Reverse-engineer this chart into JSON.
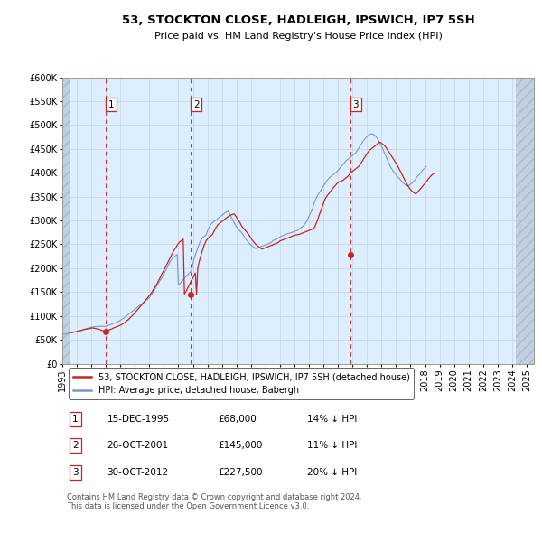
{
  "title": "53, STOCKTON CLOSE, HADLEIGH, IPSWICH, IP7 5SH",
  "subtitle": "Price paid vs. HM Land Registry's House Price Index (HPI)",
  "ylim": [
    0,
    600000
  ],
  "xlim_start": 1993.0,
  "xlim_end": 2025.5,
  "yticks": [
    0,
    50000,
    100000,
    150000,
    200000,
    250000,
    300000,
    350000,
    400000,
    450000,
    500000,
    550000,
    600000
  ],
  "ytick_labels": [
    "£0",
    "£50K",
    "£100K",
    "£150K",
    "£200K",
    "£250K",
    "£300K",
    "£350K",
    "£400K",
    "£450K",
    "£500K",
    "£550K",
    "£600K"
  ],
  "xticks": [
    1993,
    1994,
    1995,
    1996,
    1997,
    1998,
    1999,
    2000,
    2001,
    2002,
    2003,
    2004,
    2005,
    2006,
    2007,
    2008,
    2009,
    2010,
    2011,
    2012,
    2013,
    2014,
    2015,
    2016,
    2017,
    2018,
    2019,
    2020,
    2021,
    2022,
    2023,
    2024,
    2025
  ],
  "hpi_color": "#7799cc",
  "price_color": "#cc2222",
  "grid_color": "#c8d8e8",
  "bg_color": "#ddeeff",
  "hatch_bg_color": "#c0d0e0",
  "purchase_dates": [
    1995.96,
    2001.82,
    2012.83
  ],
  "purchase_prices": [
    68000,
    145000,
    227500
  ],
  "purchase_labels": [
    "1",
    "2",
    "3"
  ],
  "legend_line1": "53, STOCKTON CLOSE, HADLEIGH, IPSWICH, IP7 5SH (detached house)",
  "legend_line2": "HPI: Average price, detached house, Babergh",
  "table_data": [
    [
      "1",
      "15-DEC-1995",
      "£68,000",
      "14% ↓ HPI"
    ],
    [
      "2",
      "26-OCT-2001",
      "£145,000",
      "11% ↓ HPI"
    ],
    [
      "3",
      "30-OCT-2012",
      "£227,500",
      "20% ↓ HPI"
    ]
  ],
  "footer": "Contains HM Land Registry data © Crown copyright and database right 2024.\nThis data is licensed under the Open Government Licence v3.0.",
  "hpi_x": [
    1993.0,
    1993.083,
    1993.167,
    1993.25,
    1993.333,
    1993.417,
    1993.5,
    1993.583,
    1993.667,
    1993.75,
    1993.833,
    1993.917,
    1994.0,
    1994.083,
    1994.167,
    1994.25,
    1994.333,
    1994.417,
    1994.5,
    1994.583,
    1994.667,
    1994.75,
    1994.833,
    1994.917,
    1995.0,
    1995.083,
    1995.167,
    1995.25,
    1995.333,
    1995.417,
    1995.5,
    1995.583,
    1995.667,
    1995.75,
    1995.833,
    1995.917,
    1996.0,
    1996.083,
    1996.167,
    1996.25,
    1996.333,
    1996.417,
    1996.5,
    1996.583,
    1996.667,
    1996.75,
    1996.833,
    1996.917,
    1997.0,
    1997.083,
    1997.167,
    1997.25,
    1997.333,
    1997.417,
    1997.5,
    1997.583,
    1997.667,
    1997.75,
    1997.833,
    1997.917,
    1998.0,
    1998.083,
    1998.167,
    1998.25,
    1998.333,
    1998.417,
    1998.5,
    1998.583,
    1998.667,
    1998.75,
    1998.833,
    1998.917,
    1999.0,
    1999.083,
    1999.167,
    1999.25,
    1999.333,
    1999.417,
    1999.5,
    1999.583,
    1999.667,
    1999.75,
    1999.833,
    1999.917,
    2000.0,
    2000.083,
    2000.167,
    2000.25,
    2000.333,
    2000.417,
    2000.5,
    2000.583,
    2000.667,
    2000.75,
    2000.833,
    2000.917,
    2001.0,
    2001.083,
    2001.167,
    2001.25,
    2001.333,
    2001.417,
    2001.5,
    2001.583,
    2001.667,
    2001.75,
    2001.833,
    2001.917,
    2002.0,
    2002.083,
    2002.167,
    2002.25,
    2002.333,
    2002.417,
    2002.5,
    2002.583,
    2002.667,
    2002.75,
    2002.833,
    2002.917,
    2003.0,
    2003.083,
    2003.167,
    2003.25,
    2003.333,
    2003.417,
    2003.5,
    2003.583,
    2003.667,
    2003.75,
    2003.833,
    2003.917,
    2004.0,
    2004.083,
    2004.167,
    2004.25,
    2004.333,
    2004.417,
    2004.5,
    2004.583,
    2004.667,
    2004.75,
    2004.833,
    2004.917,
    2005.0,
    2005.083,
    2005.167,
    2005.25,
    2005.333,
    2005.417,
    2005.5,
    2005.583,
    2005.667,
    2005.75,
    2005.833,
    2005.917,
    2006.0,
    2006.083,
    2006.167,
    2006.25,
    2006.333,
    2006.417,
    2006.5,
    2006.583,
    2006.667,
    2006.75,
    2006.833,
    2006.917,
    2007.0,
    2007.083,
    2007.167,
    2007.25,
    2007.333,
    2007.417,
    2007.5,
    2007.583,
    2007.667,
    2007.75,
    2007.833,
    2007.917,
    2008.0,
    2008.083,
    2008.167,
    2008.25,
    2008.333,
    2008.417,
    2008.5,
    2008.583,
    2008.667,
    2008.75,
    2008.833,
    2008.917,
    2009.0,
    2009.083,
    2009.167,
    2009.25,
    2009.333,
    2009.417,
    2009.5,
    2009.583,
    2009.667,
    2009.75,
    2009.833,
    2009.917,
    2010.0,
    2010.083,
    2010.167,
    2010.25,
    2010.333,
    2010.417,
    2010.5,
    2010.583,
    2010.667,
    2010.75,
    2010.833,
    2010.917,
    2011.0,
    2011.083,
    2011.167,
    2011.25,
    2011.333,
    2011.417,
    2011.5,
    2011.583,
    2011.667,
    2011.75,
    2011.833,
    2011.917,
    2012.0,
    2012.083,
    2012.167,
    2012.25,
    2012.333,
    2012.417,
    2012.5,
    2012.583,
    2012.667,
    2012.75,
    2012.833,
    2012.917,
    2013.0,
    2013.083,
    2013.167,
    2013.25,
    2013.333,
    2013.417,
    2013.5,
    2013.583,
    2013.667,
    2013.75,
    2013.833,
    2013.917,
    2014.0,
    2014.083,
    2014.167,
    2014.25,
    2014.333,
    2014.417,
    2014.5,
    2014.583,
    2014.667,
    2014.75,
    2014.833,
    2014.917,
    2015.0,
    2015.083,
    2015.167,
    2015.25,
    2015.333,
    2015.417,
    2015.5,
    2015.583,
    2015.667,
    2015.75,
    2015.833,
    2015.917,
    2016.0,
    2016.083,
    2016.167,
    2016.25,
    2016.333,
    2016.417,
    2016.5,
    2016.583,
    2016.667,
    2016.75,
    2016.833,
    2016.917,
    2017.0,
    2017.083,
    2017.167,
    2017.25,
    2017.333,
    2017.417,
    2017.5,
    2017.583,
    2017.667,
    2017.75,
    2017.833,
    2017.917,
    2018.0,
    2018.083,
    2018.167,
    2018.25,
    2018.333,
    2018.417,
    2018.5,
    2018.583,
    2018.667,
    2018.75,
    2018.833,
    2018.917,
    2019.0,
    2019.083,
    2019.167,
    2019.25,
    2019.333,
    2019.417,
    2019.5,
    2019.583,
    2019.667,
    2019.75,
    2019.833,
    2019.917,
    2020.0,
    2020.083,
    2020.167,
    2020.25,
    2020.333,
    2020.417,
    2020.5,
    2020.583,
    2020.667,
    2020.75,
    2020.833,
    2020.917,
    2021.0,
    2021.083,
    2021.167,
    2021.25,
    2021.333,
    2021.417,
    2021.5,
    2021.583,
    2021.667,
    2021.75,
    2021.833,
    2021.917,
    2022.0,
    2022.083,
    2022.167,
    2022.25,
    2022.333,
    2022.417,
    2022.5,
    2022.583,
    2022.667,
    2022.75,
    2022.833,
    2022.917,
    2023.0,
    2023.083,
    2023.167,
    2023.25,
    2023.333,
    2023.417,
    2023.5,
    2023.583,
    2023.667,
    2023.75,
    2023.833,
    2023.917,
    2024.0,
    2024.083,
    2024.167,
    2024.25
  ],
  "hpi_y": [
    63000,
    62500,
    62000,
    62500,
    63000,
    63500,
    64000,
    64500,
    65000,
    65500,
    66000,
    66500,
    67000,
    67500,
    68000,
    69000,
    70000,
    71000,
    72000,
    73000,
    73500,
    74000,
    75000,
    76000,
    76500,
    77000,
    77500,
    77500,
    78000,
    78000,
    78000,
    78500,
    78500,
    78500,
    78000,
    78000,
    78500,
    79000,
    80000,
    81000,
    82000,
    83000,
    84000,
    85000,
    86000,
    87000,
    88000,
    89500,
    91000,
    92500,
    94000,
    96000,
    98000,
    100000,
    102000,
    104000,
    106000,
    108000,
    110000,
    112000,
    114000,
    116000,
    118000,
    120000,
    122000,
    124000,
    126000,
    128000,
    130000,
    132000,
    134000,
    136000,
    139000,
    142500,
    146000,
    150000,
    154000,
    158000,
    163000,
    167000,
    171000,
    175000,
    179000,
    183000,
    188000,
    193000,
    198000,
    203000,
    208000,
    213000,
    217000,
    221000,
    223000,
    225000,
    227000,
    229000,
    165000,
    167000,
    170000,
    173000,
    176000,
    179000,
    182000,
    185000,
    187000,
    190000,
    193000,
    196000,
    210000,
    220000,
    228000,
    235000,
    242000,
    249000,
    256000,
    260000,
    264000,
    266000,
    268000,
    270000,
    278000,
    283000,
    288000,
    292000,
    295000,
    297000,
    299000,
    301000,
    303000,
    305000,
    307000,
    309000,
    311000,
    313000,
    315000,
    317000,
    318000,
    320000,
    316000,
    311000,
    306000,
    301000,
    296000,
    291000,
    287000,
    284000,
    281000,
    278000,
    275000,
    272000,
    268000,
    264000,
    260000,
    257000,
    254000,
    251000,
    249000,
    247000,
    245000,
    243000,
    241000,
    242000,
    243000,
    244000,
    245000,
    246000,
    247000,
    248000,
    249000,
    250000,
    251000,
    252000,
    253000,
    255000,
    257000,
    259000,
    260000,
    261000,
    263000,
    264000,
    265000,
    267000,
    268000,
    269000,
    270000,
    271000,
    272000,
    273000,
    273500,
    274000,
    275000,
    276000,
    277000,
    278000,
    279000,
    280000,
    282000,
    284000,
    286000,
    288000,
    291000,
    294000,
    298000,
    303000,
    309000,
    314000,
    319000,
    326000,
    334000,
    341000,
    347000,
    352000,
    356000,
    360000,
    364000,
    368000,
    372000,
    376000,
    380000,
    384000,
    387000,
    390000,
    392000,
    394000,
    396000,
    398000,
    400000,
    402000,
    405000,
    408000,
    411000,
    414000,
    417000,
    420000,
    423000,
    426000,
    428000,
    430000,
    432000,
    434000,
    436000,
    438000,
    440000,
    443000,
    447000,
    451000,
    455000,
    459000,
    463000,
    467000,
    470000,
    473000,
    476000,
    478000,
    480000,
    481000,
    482000,
    481000,
    479000,
    477000,
    474000,
    470000,
    465000,
    460000,
    455000,
    450000,
    444000,
    438000,
    432000,
    426000,
    420000,
    415000,
    410000,
    406000,
    402000,
    399000,
    396000,
    393000,
    390000,
    387000,
    384000,
    381000,
    378000,
    376000,
    374000,
    373000,
    372000,
    374000,
    376000,
    378000,
    380000,
    383000,
    386000,
    390000,
    393000,
    396000,
    399000,
    402000,
    406000,
    408000,
    411000,
    413000
  ],
  "price_x": [
    1993.5,
    1993.583,
    1993.667,
    1993.75,
    1993.833,
    1993.917,
    1994.0,
    1994.083,
    1994.167,
    1994.25,
    1994.333,
    1994.417,
    1994.5,
    1994.583,
    1994.667,
    1994.75,
    1994.833,
    1994.917,
    1995.0,
    1995.083,
    1995.167,
    1995.25,
    1995.333,
    1995.417,
    1995.5,
    1995.583,
    1995.667,
    1995.75,
    1995.833,
    1995.917,
    1995.96,
    1996.0,
    1996.083,
    1996.167,
    1996.25,
    1996.333,
    1996.417,
    1996.5,
    1996.583,
    1996.667,
    1996.75,
    1996.833,
    1996.917,
    1997.0,
    1997.083,
    1997.167,
    1997.25,
    1997.333,
    1997.417,
    1997.5,
    1997.583,
    1997.667,
    1997.75,
    1997.833,
    1997.917,
    1998.0,
    1998.083,
    1998.167,
    1998.25,
    1998.333,
    1998.417,
    1998.5,
    1998.583,
    1998.667,
    1998.75,
    1998.833,
    1998.917,
    1999.0,
    1999.083,
    1999.167,
    1999.25,
    1999.333,
    1999.417,
    1999.5,
    1999.583,
    1999.667,
    1999.75,
    1999.833,
    1999.917,
    2000.0,
    2000.083,
    2000.167,
    2000.25,
    2000.333,
    2000.417,
    2000.5,
    2000.583,
    2000.667,
    2000.75,
    2000.833,
    2000.917,
    2001.0,
    2001.083,
    2001.167,
    2001.25,
    2001.333,
    2001.417,
    2001.5,
    2001.583,
    2001.667,
    2001.75,
    2001.82,
    2001.917,
    2002.0,
    2002.083,
    2002.167,
    2002.25,
    2002.333,
    2002.417,
    2002.5,
    2002.583,
    2002.667,
    2002.75,
    2002.833,
    2002.917,
    2003.0,
    2003.083,
    2003.167,
    2003.25,
    2003.333,
    2003.417,
    2003.5,
    2003.583,
    2003.667,
    2003.75,
    2003.833,
    2003.917,
    2004.0,
    2004.083,
    2004.167,
    2004.25,
    2004.333,
    2004.417,
    2004.5,
    2004.583,
    2004.667,
    2004.75,
    2004.833,
    2004.917,
    2005.0,
    2005.083,
    2005.167,
    2005.25,
    2005.333,
    2005.417,
    2005.5,
    2005.583,
    2005.667,
    2005.75,
    2005.833,
    2005.917,
    2006.0,
    2006.083,
    2006.167,
    2006.25,
    2006.333,
    2006.417,
    2006.5,
    2006.583,
    2006.667,
    2006.75,
    2006.833,
    2006.917,
    2007.0,
    2007.083,
    2007.167,
    2007.25,
    2007.333,
    2007.417,
    2007.5,
    2007.583,
    2007.667,
    2007.75,
    2007.833,
    2007.917,
    2008.0,
    2008.083,
    2008.167,
    2008.25,
    2008.333,
    2008.417,
    2008.5,
    2008.583,
    2008.667,
    2008.75,
    2008.833,
    2008.917,
    2009.0,
    2009.083,
    2009.167,
    2009.25,
    2009.333,
    2009.417,
    2009.5,
    2009.583,
    2009.667,
    2009.75,
    2009.833,
    2009.917,
    2010.0,
    2010.083,
    2010.167,
    2010.25,
    2010.333,
    2010.417,
    2010.5,
    2010.583,
    2010.667,
    2010.75,
    2010.833,
    2010.917,
    2011.0,
    2011.083,
    2011.167,
    2011.25,
    2011.333,
    2011.417,
    2011.5,
    2011.583,
    2011.667,
    2011.75,
    2011.833,
    2011.917,
    2012.0,
    2012.083,
    2012.167,
    2012.25,
    2012.333,
    2012.417,
    2012.5,
    2012.583,
    2012.667,
    2012.75,
    2012.83,
    2012.917,
    2013.0,
    2013.083,
    2013.167,
    2013.25,
    2013.333,
    2013.417,
    2013.5,
    2013.583,
    2013.667,
    2013.75,
    2013.833,
    2013.917,
    2014.0,
    2014.083,
    2014.167,
    2014.25,
    2014.333,
    2014.417,
    2014.5,
    2014.583,
    2014.667,
    2014.75,
    2014.833,
    2014.917,
    2015.0,
    2015.083,
    2015.167,
    2015.25,
    2015.333,
    2015.417,
    2015.5,
    2015.583,
    2015.667,
    2015.75,
    2015.833,
    2015.917,
    2016.0,
    2016.083,
    2016.167,
    2016.25,
    2016.333,
    2016.417,
    2016.5,
    2016.583,
    2016.667,
    2016.75,
    2016.833,
    2016.917,
    2017.0,
    2017.083,
    2017.167,
    2017.25,
    2017.333,
    2017.417,
    2017.5,
    2017.583,
    2017.667,
    2017.75,
    2017.833,
    2017.917,
    2018.0,
    2018.083,
    2018.167,
    2018.25,
    2018.333,
    2018.417,
    2018.5,
    2018.583,
    2018.667,
    2018.75,
    2018.833,
    2018.917,
    2019.0,
    2019.083,
    2019.167,
    2019.25,
    2019.333,
    2019.417,
    2019.5,
    2019.583,
    2019.667,
    2019.75,
    2019.833,
    2019.917,
    2020.0,
    2020.083,
    2020.167,
    2020.25,
    2020.333,
    2020.417,
    2020.5,
    2020.583,
    2020.667,
    2020.75,
    2020.833,
    2020.917,
    2021.0,
    2021.083,
    2021.167,
    2021.25,
    2021.333,
    2021.417,
    2021.5,
    2021.583,
    2021.667,
    2021.75,
    2021.833,
    2021.917,
    2022.0,
    2022.083,
    2022.167,
    2022.25,
    2022.333,
    2022.417,
    2022.5,
    2022.583,
    2022.667,
    2022.75,
    2022.833,
    2022.917,
    2023.0,
    2023.083,
    2023.167,
    2023.25,
    2023.333,
    2023.417,
    2023.5,
    2023.583,
    2023.667,
    2023.75,
    2023.833,
    2023.917,
    2024.0,
    2024.083,
    2024.167,
    2024.25
  ],
  "price_y": [
    65000,
    65500,
    65800,
    66000,
    66500,
    67000,
    67500,
    68500,
    69000,
    69500,
    70000,
    71000,
    71500,
    72000,
    72500,
    73000,
    73500,
    74000,
    74500,
    75000,
    74500,
    74000,
    73500,
    73000,
    72500,
    71500,
    70500,
    69500,
    69000,
    68500,
    68000,
    68500,
    69500,
    70500,
    71000,
    72000,
    73000,
    74500,
    75500,
    76500,
    77500,
    78500,
    79500,
    80500,
    82000,
    83500,
    85000,
    87000,
    89000,
    91000,
    93500,
    96000,
    98500,
    101000,
    103500,
    106500,
    109500,
    112500,
    115500,
    118500,
    121500,
    124500,
    127500,
    130500,
    133500,
    136500,
    139500,
    143000,
    146500,
    150000,
    154000,
    158000,
    162000,
    166000,
    171000,
    176000,
    181000,
    186000,
    191000,
    196000,
    201000,
    206000,
    211000,
    216000,
    221000,
    226000,
    231000,
    236000,
    240000,
    244000,
    248000,
    252000,
    255000,
    257000,
    259000,
    261000,
    146000,
    150000,
    155000,
    160000,
    165000,
    170000,
    175000,
    180000,
    185000,
    190000,
    145000,
    200000,
    212000,
    221000,
    230000,
    238000,
    246000,
    252000,
    258000,
    261000,
    264000,
    266000,
    268000,
    270000,
    275000,
    280000,
    285000,
    289000,
    292000,
    294000,
    296000,
    298000,
    300000,
    302000,
    304000,
    306000,
    308000,
    310000,
    311000,
    312000,
    313000,
    314000,
    311000,
    307000,
    303000,
    299000,
    295000,
    290000,
    286000,
    283000,
    280000,
    277000,
    274000,
    271000,
    267000,
    263000,
    259000,
    256000,
    253000,
    250000,
    248000,
    246000,
    244000,
    242000,
    240000,
    241000,
    242000,
    243000,
    244000,
    245000,
    246000,
    247000,
    248000,
    249000,
    250000,
    251000,
    252000,
    253000,
    255000,
    257000,
    258000,
    259000,
    260000,
    261000,
    262000,
    263000,
    264000,
    265000,
    266000,
    267000,
    268000,
    269000,
    269500,
    270000,
    270500,
    271000,
    272000,
    273000,
    274000,
    275000,
    276000,
    277000,
    278000,
    279000,
    280000,
    281000,
    282000,
    283000,
    288000,
    294000,
    300000,
    308000,
    315000,
    322000,
    329000,
    336000,
    343000,
    348000,
    352000,
    355000,
    358000,
    362000,
    365000,
    368000,
    371000,
    374000,
    377000,
    379000,
    381000,
    382000,
    383000,
    384000,
    386000,
    388000,
    390000,
    392000,
    395000,
    398000,
    401000,
    403000,
    405000,
    407000,
    409000,
    411000,
    413000,
    416000,
    420000,
    424000,
    428000,
    432000,
    436000,
    440000,
    444000,
    447000,
    449000,
    451000,
    453000,
    455000,
    457000,
    459000,
    461000,
    463000,
    464000,
    462000,
    460000,
    458000,
    455000,
    452000,
    448000,
    444000,
    440000,
    436000,
    432000,
    428000,
    424000,
    420000,
    416000,
    411000,
    406000,
    401000,
    396000,
    391000,
    386000,
    381000,
    376000,
    372000,
    368000,
    365000,
    362000,
    360000,
    358000,
    356000,
    357000,
    360000,
    363000,
    366000,
    369000,
    372000,
    375000,
    378000,
    381000,
    384000,
    388000,
    391000,
    394000,
    396000,
    398000
  ]
}
